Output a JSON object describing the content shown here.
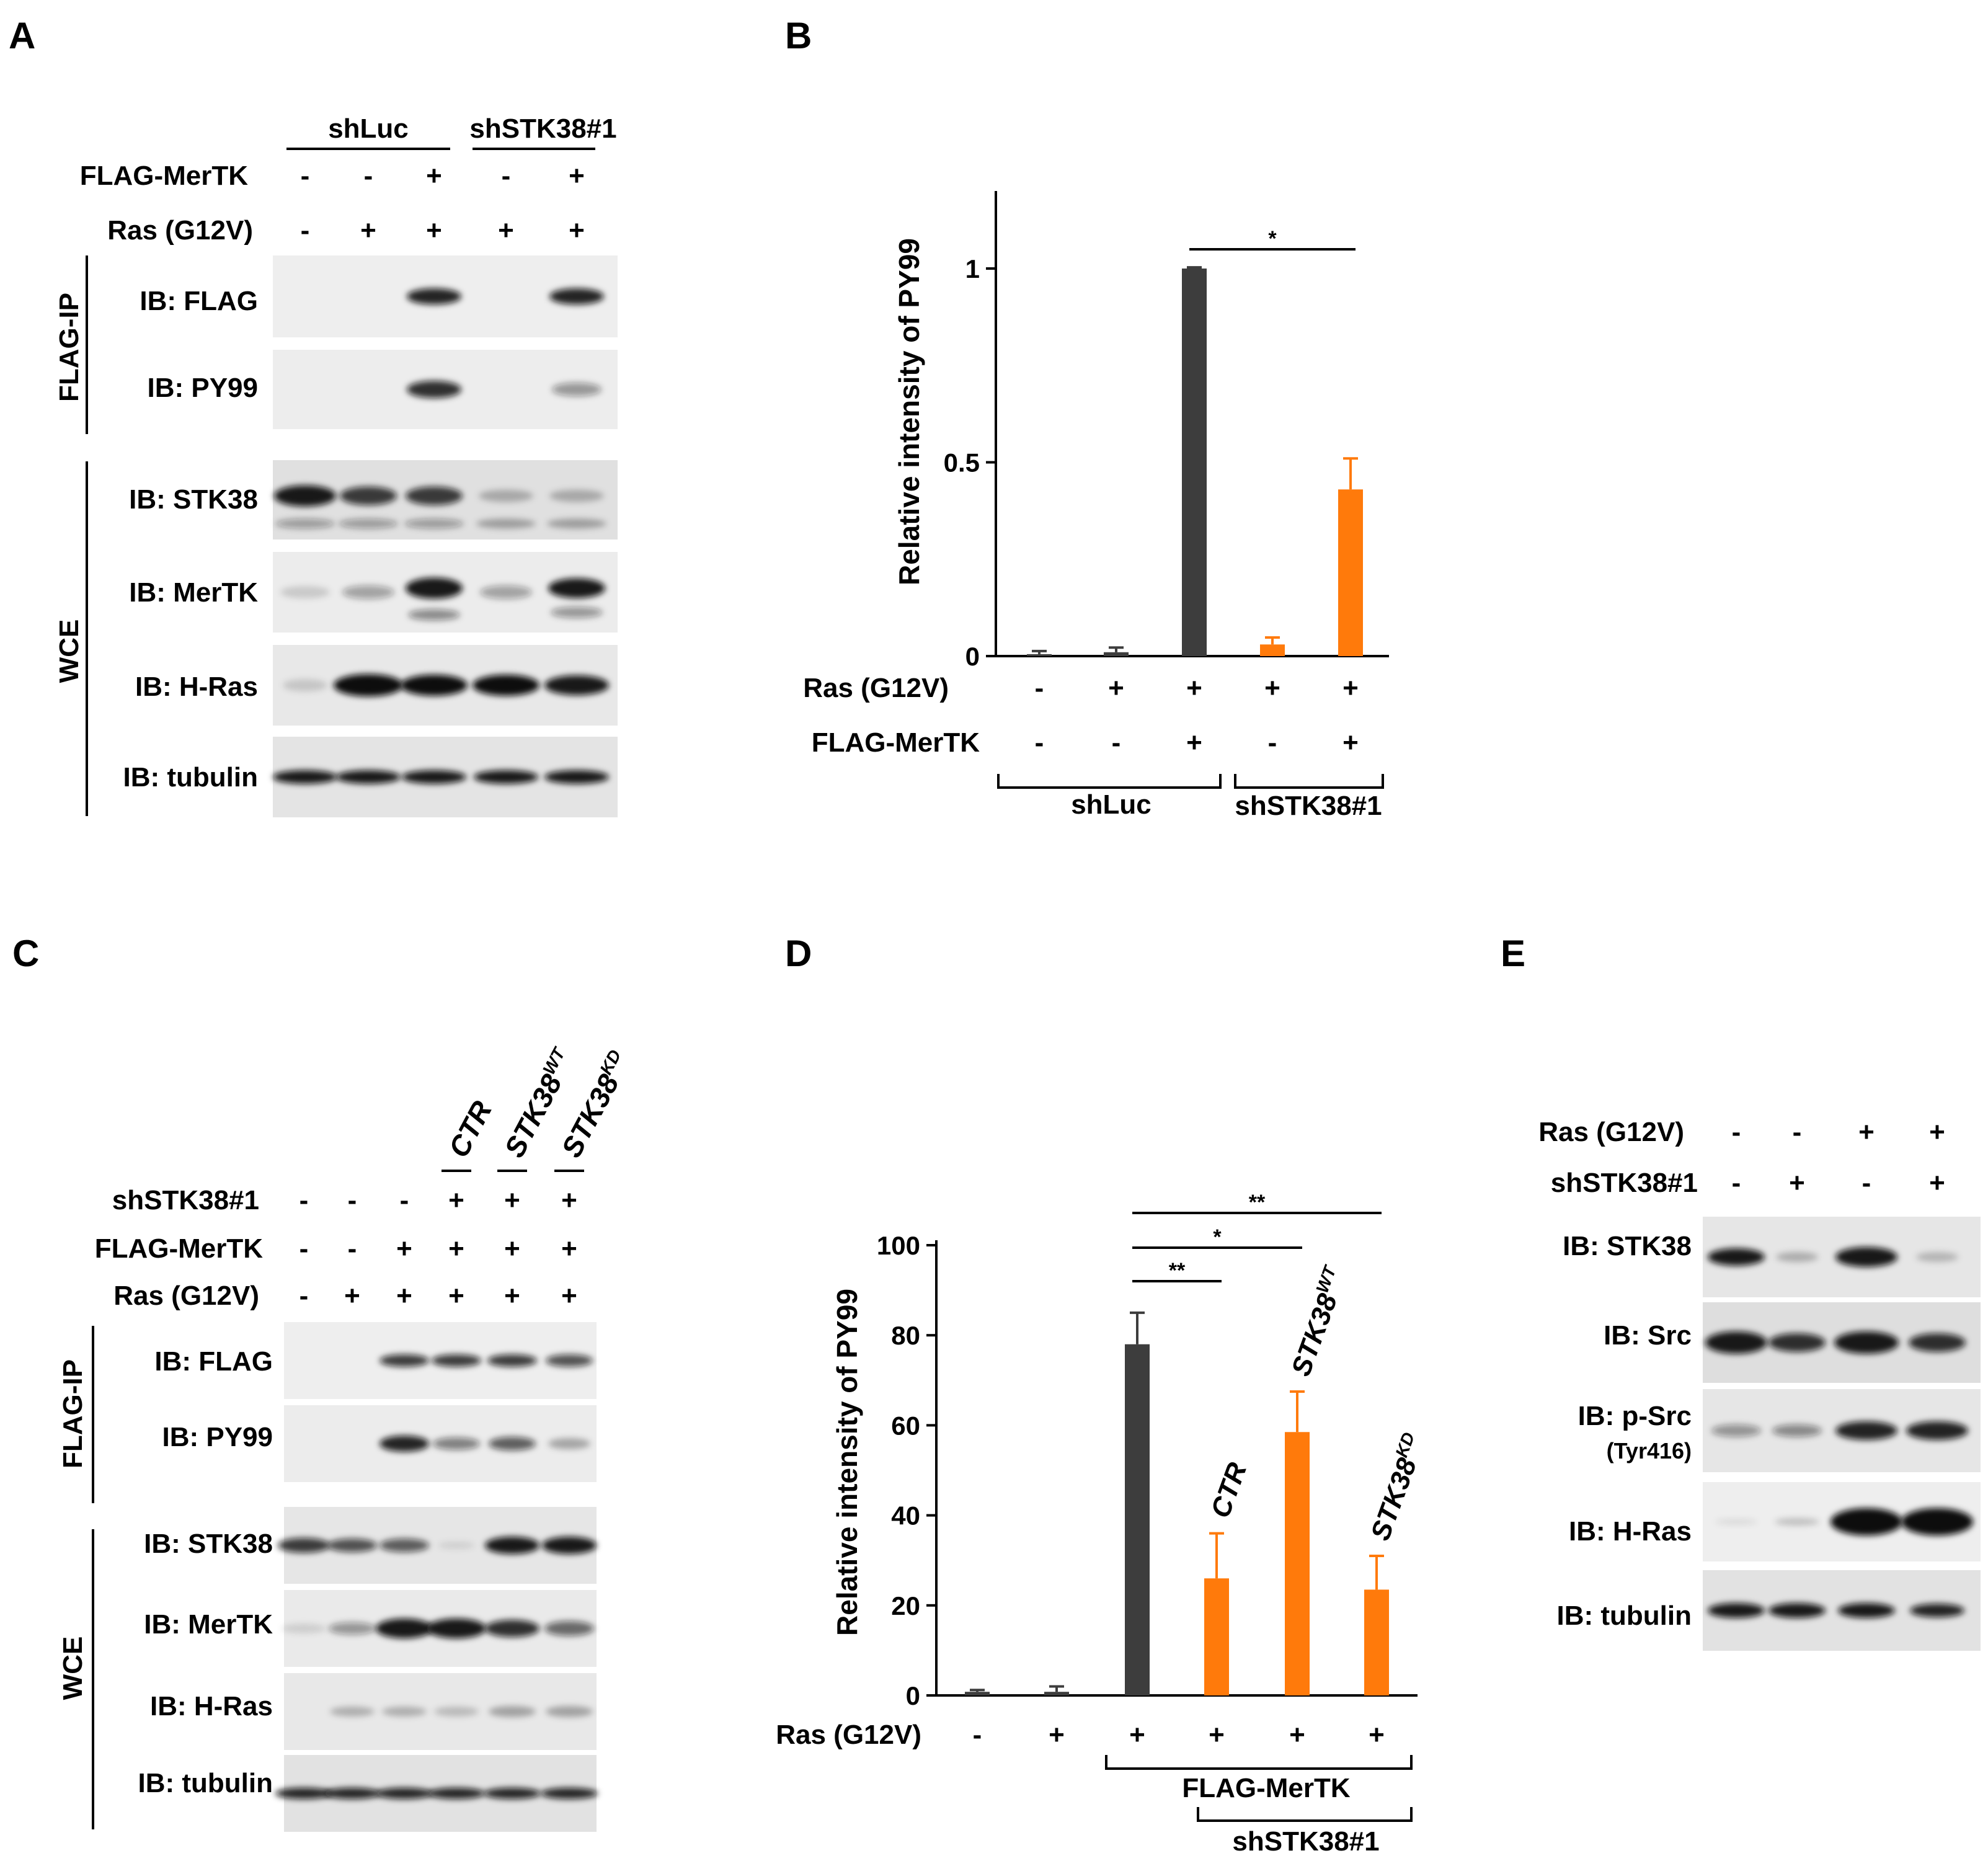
{
  "panels": {
    "A": "A",
    "B": "B",
    "C": "C",
    "D": "D",
    "E": "E"
  },
  "panel_a": {
    "groups": [
      "shLuc",
      "shSTK38#1"
    ],
    "condition_rows": [
      {
        "label": "FLAG-MerTK",
        "values": [
          "-",
          "-",
          "+",
          "-",
          "+"
        ]
      },
      {
        "label": "Ras (G12V)",
        "values": [
          "-",
          "+",
          "+",
          "+",
          "+"
        ]
      }
    ],
    "sections": [
      "FLAG-IP",
      "WCE"
    ],
    "blots": [
      "IB: FLAG",
      "IB: PY99",
      "IB: STK38",
      "IB: MerTK",
      "IB: H-Ras",
      "IB: tubulin"
    ]
  },
  "panel_c": {
    "rescue_labels": [
      "CTR",
      "STK38",
      "STK38"
    ],
    "rescue_superscripts": [
      "",
      "WT",
      "KD"
    ],
    "condition_rows": [
      {
        "label": "shSTK38#1",
        "values": [
          "-",
          "-",
          "-",
          "+",
          "+",
          "+"
        ]
      },
      {
        "label": "FLAG-MerTK",
        "values": [
          "-",
          "-",
          "+",
          "+",
          "+",
          "+"
        ]
      },
      {
        "label": "Ras (G12V)",
        "values": [
          "-",
          "+",
          "+",
          "+",
          "+",
          "+"
        ]
      }
    ],
    "sections": [
      "FLAG-IP",
      "WCE"
    ],
    "blots": [
      "IB: FLAG",
      "IB: PY99",
      "IB: STK38",
      "IB: MerTK",
      "IB: H-Ras",
      "IB: tubulin"
    ]
  },
  "panel_e": {
    "condition_rows": [
      {
        "label": "Ras (G12V)",
        "values": [
          "-",
          "-",
          "+",
          "+"
        ]
      },
      {
        "label": "shSTK38#1",
        "values": [
          "-",
          "+",
          "-",
          "+"
        ]
      }
    ],
    "blots": [
      "IB: STK38",
      "IB: Src",
      "IB: p-Src",
      "IB: H-Ras",
      "IB: tubulin"
    ],
    "psrc_note": "(Tyr416)"
  },
  "chart_data": [
    {
      "panel": "B",
      "type": "bar",
      "ylabel": "Relative intensity of PY99",
      "ylim": [
        0,
        1.2
      ],
      "yticks": [
        "0",
        "0.5",
        "1"
      ],
      "values": [
        0.005,
        0.01,
        1.0,
        0.03,
        0.43
      ],
      "errors": [
        0.008,
        0.012,
        0.003,
        0.018,
        0.08
      ],
      "colors": [
        "#3d3d3d",
        "#3d3d3d",
        "#3d3d3d",
        "#ff7a0b",
        "#ff7a0b"
      ],
      "condition_rows": [
        {
          "label": "Ras (G12V)",
          "values": [
            "-",
            "+",
            "+",
            "+",
            "+"
          ]
        },
        {
          "label": "FLAG-MerTK",
          "values": [
            "-",
            "-",
            "+",
            "-",
            "+"
          ]
        }
      ],
      "groups": [
        "shLuc",
        "shSTK38#1"
      ],
      "significance": [
        {
          "from": 3,
          "to": 5,
          "label": "*"
        }
      ]
    },
    {
      "panel": "D",
      "type": "bar",
      "ylabel": "Relative intensity of PY99",
      "ylim": [
        0,
        100
      ],
      "yticks": [
        "0",
        "20",
        "40",
        "60",
        "80",
        "100"
      ],
      "values": [
        0.8,
        0.8,
        78,
        26,
        58.5,
        23.5
      ],
      "errors": [
        0.4,
        1.2,
        7,
        10,
        9,
        7.5
      ],
      "colors": [
        "#3d3d3d",
        "#3d3d3d",
        "#3d3d3d",
        "#ff7a0b",
        "#ff7a0b",
        "#ff7a0b"
      ],
      "bar_labels": [
        "",
        "",
        "",
        "CTR",
        "STK38",
        "STK38"
      ],
      "bar_label_superscripts": [
        "",
        "",
        "",
        "",
        "WT",
        "KD"
      ],
      "condition_rows": [
        {
          "label": "Ras (G12V)",
          "values": [
            "-",
            "+",
            "+",
            "+",
            "+",
            "+"
          ]
        }
      ],
      "groups": [
        "FLAG-MerTK",
        "shSTK38#1"
      ],
      "significance": [
        {
          "from": 3,
          "to": 4,
          "label": "**"
        },
        {
          "from": 3,
          "to": 5,
          "label": "*"
        },
        {
          "from": 3,
          "to": 6,
          "label": "**"
        }
      ]
    }
  ]
}
